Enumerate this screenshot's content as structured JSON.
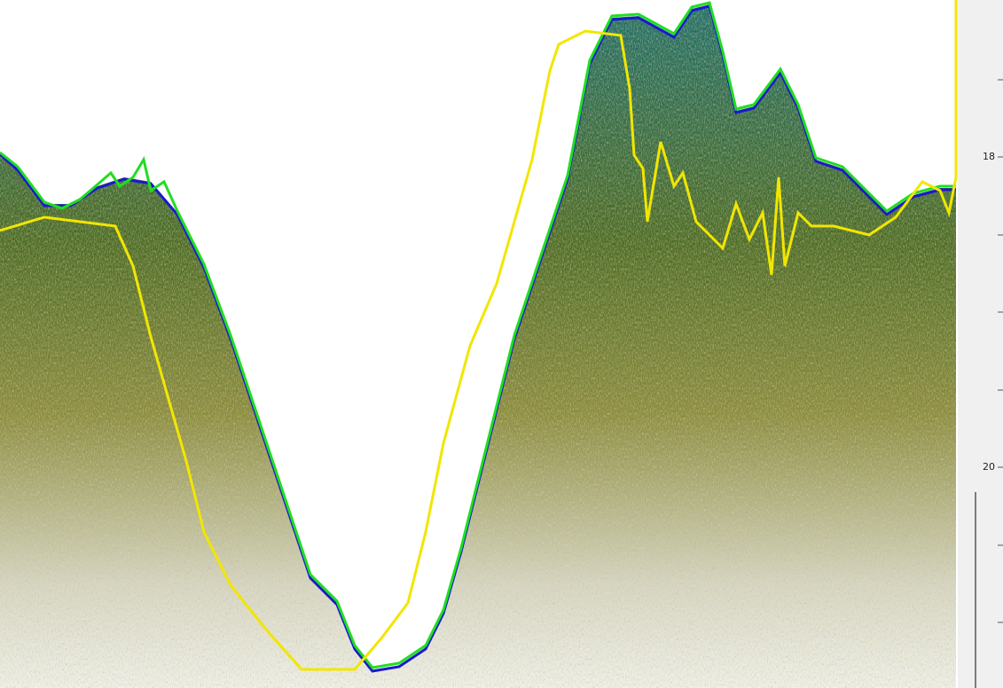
{
  "depth_axis": {
    "tick_labels": [
      "18",
      "20"
    ]
  }
}
